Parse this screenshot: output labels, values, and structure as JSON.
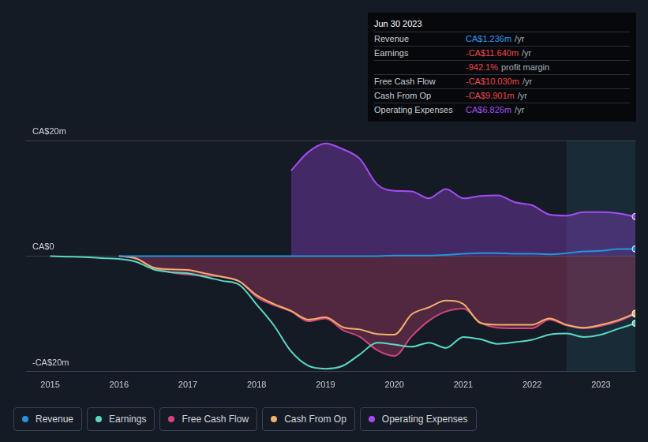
{
  "chart_data": {
    "type": "line",
    "x": [
      2015,
      2015.25,
      2015.5,
      2015.75,
      2016,
      2016.25,
      2016.5,
      2016.75,
      2017,
      2017.25,
      2017.5,
      2017.75,
      2018,
      2018.25,
      2018.5,
      2018.75,
      2019,
      2019.25,
      2019.5,
      2019.75,
      2020,
      2020.25,
      2020.5,
      2020.75,
      2021,
      2021.25,
      2021.5,
      2021.75,
      2022,
      2022.25,
      2022.5,
      2022.75,
      2023,
      2023.25,
      2023.5
    ],
    "xlim": [
      2014.65,
      2023.5
    ],
    "xticks": [
      2015,
      2016,
      2017,
      2018,
      2019,
      2020,
      2021,
      2022,
      2023
    ],
    "ylim": [
      -20,
      20
    ],
    "yticks": [
      {
        "value": -20,
        "label": "-CA$20m"
      },
      {
        "value": 0,
        "label": "CA$0"
      },
      {
        "value": 20,
        "label": "CA$20m"
      }
    ],
    "grid": true,
    "legend": "bottom",
    "shaded_x": [
      2022.5,
      2023.5
    ],
    "series": [
      {
        "name": "Revenue",
        "color": "#2394df",
        "type": "line",
        "values": [
          null,
          null,
          null,
          null,
          0,
          0,
          0,
          0,
          0,
          0,
          0,
          0,
          0,
          0,
          0,
          0,
          0,
          0,
          0,
          0,
          0.1,
          0.1,
          0.1,
          0.2,
          0.4,
          0.5,
          0.5,
          0.4,
          0.4,
          0.3,
          0.5,
          0.8,
          0.9,
          1.2,
          1.236
        ]
      },
      {
        "name": "Earnings",
        "color": "#5ad8c6",
        "type": "line",
        "values": [
          0,
          -0.1,
          -0.2,
          -0.35,
          -0.5,
          -1,
          -2.3,
          -2.8,
          -3,
          -3.6,
          -4.3,
          -5,
          -8.4,
          -12,
          -16.5,
          -19,
          -19.5,
          -19,
          -17,
          -15,
          -15.3,
          -15.7,
          -15,
          -15.9,
          -14,
          -14.4,
          -15.2,
          -14.9,
          -14.5,
          -13.6,
          -13.4,
          -14,
          -13.6,
          -12.6,
          -11.64
        ]
      },
      {
        "name": "Free Cash Flow",
        "color": "#d0457a",
        "type": "area",
        "values": [
          null,
          null,
          null,
          null,
          0,
          -0.5,
          -2,
          -2.8,
          -3.2,
          -3.4,
          -3.6,
          -4.4,
          -7.1,
          -8.5,
          -9.6,
          -11.3,
          -10.8,
          -12.8,
          -14,
          -16.3,
          -17.3,
          -13.9,
          -11.2,
          -9.6,
          -9.1,
          -11.5,
          -12.4,
          -12.5,
          -12.5,
          -11,
          -12,
          -12.5,
          -12.1,
          -11.3,
          -10.03
        ]
      },
      {
        "name": "Cash From Op",
        "color": "#f2b06b",
        "type": "line",
        "values": [
          null,
          null,
          null,
          null,
          0,
          -0.4,
          -2,
          -2.3,
          -2.4,
          -3,
          -3.6,
          -4.4,
          -6.8,
          -8.3,
          -9.5,
          -11,
          -10.6,
          -12.3,
          -12.7,
          -13.5,
          -13.6,
          -10.1,
          -8.9,
          -7.7,
          -8.3,
          -11.6,
          -11.9,
          -11.9,
          -11.9,
          -10.8,
          -11.9,
          -12.4,
          -11.9,
          -11.1,
          -9.901
        ]
      },
      {
        "name": "Operating Expenses",
        "color": "#a64cf2",
        "type": "area",
        "values": [
          null,
          null,
          null,
          null,
          null,
          null,
          null,
          null,
          null,
          null,
          null,
          null,
          null,
          null,
          14.8,
          18,
          19.5,
          18.5,
          16.8,
          12.4,
          11.3,
          11.2,
          10,
          11.6,
          10,
          10.4,
          10.5,
          9.3,
          8.8,
          7.2,
          7.0,
          7.6,
          7.6,
          7.4,
          6.826
        ]
      }
    ],
    "info_box": {
      "title": "Jun 30 2023",
      "rows": [
        {
          "label": "Revenue",
          "value": "CA$1.236m",
          "unit": "/yr",
          "color": "#2f9cf0"
        },
        {
          "label": "Earnings",
          "value": "-CA$11.640m",
          "unit": "/yr",
          "color": "#f0474f"
        },
        {
          "value": "-942.1%",
          "unit": "profit margin",
          "color": "#f0474f"
        },
        {
          "label": "Free Cash Flow",
          "value": "-CA$10.030m",
          "unit": "/yr",
          "color": "#f0474f"
        },
        {
          "label": "Cash From Op",
          "value": "-CA$9.901m",
          "unit": "/yr",
          "color": "#f0474f"
        },
        {
          "label": "Operating Expenses",
          "value": "CA$6.826m",
          "unit": "/yr",
          "color": "#a64cf2"
        }
      ]
    }
  }
}
